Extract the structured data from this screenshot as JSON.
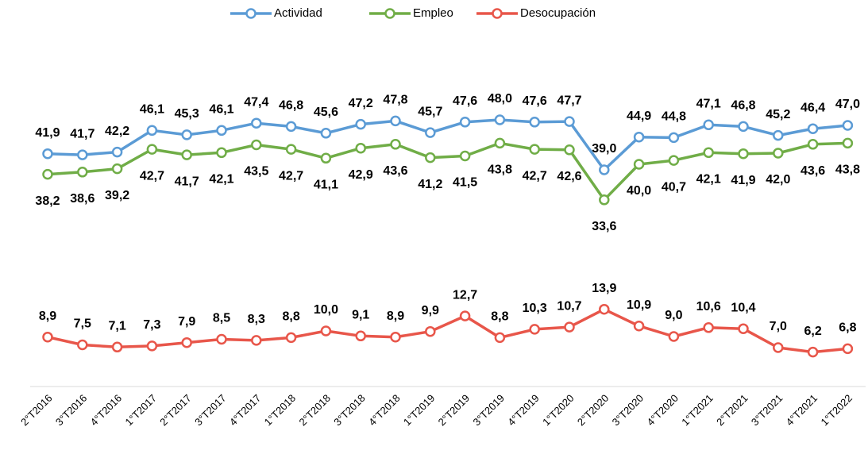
{
  "chart_data": {
    "type": "line",
    "categories": [
      "2°T2016",
      "3°T2016",
      "4°T2016",
      "1°T2017",
      "2°T2017",
      "3°T2017",
      "4°T2017",
      "1°T2018",
      "2°T2018",
      "3°T2018",
      "4°T2018",
      "1°T2019",
      "2°T2019",
      "3°T2019",
      "4°T2019",
      "1°T2020",
      "2°T2020",
      "3°T2020",
      "4°T2020",
      "1°T2021",
      "2°T2021",
      "3°T2021",
      "4°T2021",
      "1°T2022"
    ],
    "series": [
      {
        "name": "Actividad",
        "color": "#5b9bd5",
        "values": [
          41.9,
          41.7,
          42.2,
          46.1,
          45.3,
          46.1,
          47.4,
          46.8,
          45.6,
          47.2,
          47.8,
          45.7,
          47.6,
          48.0,
          47.6,
          47.7,
          39.0,
          44.9,
          44.8,
          47.1,
          46.8,
          45.2,
          46.4,
          47.0
        ],
        "value_labels": [
          "41,9",
          "41,7",
          "42,2",
          "46,1",
          "45,3",
          "46,1",
          "47,4",
          "46,8",
          "45,6",
          "47,2",
          "47,8",
          "45,7",
          "47,6",
          "48,0",
          "47,6",
          "47,7",
          "39,0",
          "44,9",
          "44,8",
          "47,1",
          "46,8",
          "45,2",
          "46,4",
          "47,0"
        ]
      },
      {
        "name": "Empleo",
        "color": "#70ad47",
        "values": [
          38.2,
          38.6,
          39.2,
          42.7,
          41.7,
          42.1,
          43.5,
          42.7,
          41.1,
          42.9,
          43.6,
          41.2,
          41.5,
          43.8,
          42.7,
          42.6,
          33.6,
          40.0,
          40.7,
          42.1,
          41.9,
          42.0,
          43.6,
          43.8
        ],
        "value_labels": [
          "38,2",
          "38,6",
          "39,2",
          "42,7",
          "41,7",
          "42,1",
          "43,5",
          "42,7",
          "41,1",
          "42,9",
          "43,6",
          "41,2",
          "41,5",
          "43,8",
          "42,7",
          "42,6",
          "33,6",
          "40,0",
          "40,7",
          "42,1",
          "41,9",
          "42,0",
          "43,6",
          "43,8"
        ]
      },
      {
        "name": "Desocupación",
        "color": "#e8564a",
        "values": [
          8.9,
          7.5,
          7.1,
          7.3,
          7.9,
          8.5,
          8.3,
          8.8,
          10.0,
          9.1,
          8.9,
          9.9,
          12.7,
          8.8,
          10.3,
          10.7,
          13.9,
          10.9,
          9.0,
          10.6,
          10.4,
          7.0,
          6.2,
          6.8
        ],
        "value_labels": [
          "8,9",
          "7,5",
          "7,1",
          "7,3",
          "7,9",
          "8,5",
          "8,3",
          "8,8",
          "10,0",
          "9,1",
          "8,9",
          "9,9",
          "12,7",
          "8,8",
          "10,3",
          "10,7",
          "13,9",
          "10,9",
          "9,0",
          "10,6",
          "10,4",
          "7,0",
          "6,2",
          "6,8"
        ]
      }
    ]
  }
}
